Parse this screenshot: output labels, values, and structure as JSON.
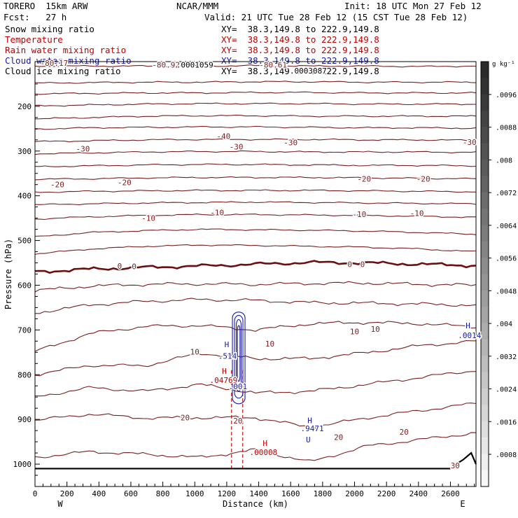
{
  "header": {
    "model": "TORERO  15km ARW",
    "fcst": "Fcst:   27 h",
    "center": "NCAR/MMM",
    "init": "Init: 18 UTC Mon 27 Feb 12",
    "valid": "Valid: 21 UTC Tue 28 Feb 12 (15 CST Tue 28 Feb 12)"
  },
  "fields": [
    {
      "name": "Snow mixing ratio",
      "xy": "XY=  38.3,149.8 to 222.9,149.8",
      "color": "#000000"
    },
    {
      "name": "Temperature",
      "xy": "XY=  38.3,149.8 to 222.9,149.8",
      "color": "#c00000"
    },
    {
      "name": "Rain water mixing ratio",
      "xy": "XY=  38.3,149.8 to 222.9,149.8",
      "color": "#c00000"
    },
    {
      "name": "Cloud water mixing ratio",
      "xy": "XY=  38.3,149.8 to 222.9,149.8",
      "color": "#1a1aa0"
    },
    {
      "name": "Cloud ice mixing ratio",
      "xy": "XY=  38.3,149.8 to 222.9,149.8",
      "color": "#000000"
    }
  ],
  "chart_data": {
    "type": "cross-section contour",
    "xlabel": "Distance (km)",
    "ylabel": "Pressure (hPa)",
    "xlim": [
      0,
      2760
    ],
    "ylim": [
      1050,
      100
    ],
    "x_ticks": [
      0,
      200,
      400,
      600,
      800,
      1000,
      1200,
      1400,
      1600,
      1800,
      2000,
      2200,
      2400,
      2600
    ],
    "y_ticks": [
      200,
      300,
      400,
      500,
      600,
      700,
      800,
      900,
      1000
    ],
    "end_labels": {
      "left": "W",
      "right": "E"
    },
    "colorbar": {
      "unit": "g kg⁻¹",
      "labels": [
        ".0096",
        ".0088",
        ".008",
        ".0072",
        ".0064",
        ".0056",
        ".0048",
        ".004",
        ".0032",
        ".0024",
        ".0016",
        ".0008"
      ],
      "dark_color": "#2a2a2a",
      "light_color": "#f7f7f7"
    },
    "temperature_contours": {
      "color": "#7a1f1f",
      "zero_color": "#6e0f0f",
      "isotherms": [
        {
          "p": [
            110,
            110,
            110,
            110,
            109,
            110,
            110,
            111,
            110
          ],
          "label": null
        },
        {
          "p": [
            148,
            147,
            146,
            146,
            145,
            145,
            146,
            146,
            146
          ],
          "label": null
        },
        {
          "p": [
            172,
            171,
            170,
            170,
            169,
            169,
            170,
            170,
            170
          ],
          "label": null
        },
        {
          "p": [
            199,
            197,
            195,
            194,
            194,
            194,
            195,
            195,
            195
          ],
          "label": null
        },
        {
          "p": [
            228,
            225,
            222,
            221,
            221,
            222,
            222,
            222,
            222
          ],
          "label": null
        },
        {
          "p": [
            251,
            248,
            247,
            246,
            246,
            247,
            248,
            248,
            249
          ],
          "label": null
        },
        {
          "p": [
            279,
            277,
            275,
            274,
            274,
            274,
            275,
            275,
            276
          ],
          "label": null
        },
        {
          "p": [
            306,
            304,
            302,
            301,
            301,
            302,
            302,
            302,
            303
          ],
          "label": null
        },
        {
          "p": [
            335,
            333,
            331,
            330,
            330,
            331,
            332,
            332,
            333
          ],
          "label": null
        },
        {
          "p": [
            363,
            362,
            360,
            359,
            359,
            359,
            360,
            361,
            362
          ],
          "label": null
        },
        {
          "p": [
            392,
            390,
            389,
            388,
            388,
            388,
            389,
            390,
            391
          ],
          "label": null
        },
        {
          "p": [
            420,
            418,
            416,
            415,
            414,
            415,
            416,
            417,
            418
          ],
          "label": null
        },
        {
          "p": [
            452,
            447,
            444,
            442,
            442,
            443,
            444,
            446,
            448
          ],
          "label": null
        },
        {
          "p": [
            492,
            482,
            478,
            475,
            476,
            477,
            479,
            482,
            486
          ],
          "label": null
        },
        {
          "p": [
            530,
            519,
            513,
            510,
            511,
            513,
            515,
            519,
            525
          ],
          "label": null
        },
        {
          "p": [
            570,
            564,
            560,
            557,
            553,
            549,
            550,
            553,
            556
          ],
          "label": null
        },
        {
          "p": [
            612,
            602,
            598,
            597,
            598,
            596,
            595,
            598,
            600
          ],
          "label": null
        },
        {
          "p": [
            662,
            644,
            636,
            632,
            634,
            639,
            640,
            642,
            645
          ],
          "label": null
        },
        {
          "p": [
            748,
            708,
            692,
            690,
            700,
            686,
            683,
            686,
            693
          ],
          "label": null
        },
        {
          "p": [
            800,
            779,
            780,
            752,
            764,
            764,
            751,
            735,
            725
          ],
          "label": null
        },
        {
          "p": [
            850,
            829,
            837,
            822,
            841,
            837,
            822,
            806,
            790
          ],
          "label": null
        },
        {
          "p": [
            902,
            888,
            897,
            896,
            896,
            918,
            897,
            880,
            864
          ],
          "label": null
        },
        {
          "p": [
            985,
            972,
            978,
            985,
            968,
            995,
            960,
            945,
            930
          ],
          "label": null
        }
      ],
      "labels": [
        {
          "text": "-40",
          "x": 1180,
          "p": 267
        },
        {
          "text": "-30",
          "x": 300,
          "p": 295
        },
        {
          "text": "-30",
          "x": 1260,
          "p": 290
        },
        {
          "text": "-30",
          "x": 1600,
          "p": 281
        },
        {
          "text": "-30",
          "x": 2720,
          "p": 280
        },
        {
          "text": "-20",
          "x": 140,
          "p": 375
        },
        {
          "text": "-20",
          "x": 560,
          "p": 370
        },
        {
          "text": "-20",
          "x": 2060,
          "p": 362
        },
        {
          "text": "-20",
          "x": 2430,
          "p": 362
        },
        {
          "text": "-10",
          "x": 710,
          "p": 450
        },
        {
          "text": "-10",
          "x": 1140,
          "p": 437
        },
        {
          "text": "-10",
          "x": 2030,
          "p": 441
        },
        {
          "text": "-10",
          "x": 2390,
          "p": 439
        },
        {
          "text": "0",
          "x": 530,
          "p": 557
        },
        {
          "text": "0",
          "x": 620,
          "p": 558
        },
        {
          "text": "0",
          "x": 1970,
          "p": 553
        },
        {
          "text": "0",
          "x": 2050,
          "p": 553
        },
        {
          "text": "10",
          "x": 1000,
          "p": 749
        },
        {
          "text": "10",
          "x": 2000,
          "p": 703
        },
        {
          "text": "10",
          "x": 2130,
          "p": 698
        },
        {
          "text": "10",
          "x": 1470,
          "p": 731
        },
        {
          "text": "20",
          "x": 940,
          "p": 896
        },
        {
          "text": "20",
          "x": 1270,
          "p": 903
        },
        {
          "text": "20",
          "x": 1900,
          "p": 940
        },
        {
          "text": "20",
          "x": 2310,
          "p": 928
        },
        {
          "text": "30",
          "x": 2630,
          "p": 1003
        }
      ]
    },
    "extra_labels": [
      {
        "text": "-80.17",
        "x": 120,
        "p": 103,
        "color": "#7a1f1f"
      },
      {
        "text": "-80.92",
        "x": 820,
        "p": 107,
        "color": "#7a1f1f"
      },
      {
        "text": ".0001059",
        "x": 1000,
        "p": 107,
        "color": "#000000"
      },
      {
        "text": "-80.61",
        "x": 1490,
        "p": 107,
        "color": "#7a1f1f"
      },
      {
        "text": ".0003087",
        "x": 1710,
        "p": 120,
        "color": "#000000"
      }
    ],
    "cloud_water": {
      "color": "#1a1aa0",
      "x_center": 1275,
      "p_top": 660,
      "p_bottom": 865
    },
    "rain_shaft": {
      "color": "#c00000",
      "x": [
        1230,
        1300
      ],
      "p_top": 790,
      "p_bottom": 1010
    },
    "extrema": [
      {
        "text": "H",
        "x": 1200,
        "p": 732,
        "color": "#1a1aa0"
      },
      {
        "text": ".514",
        "x": 1205,
        "p": 758,
        "color": "#1a1aa0"
      },
      {
        "text": "H",
        "x": 1185,
        "p": 792,
        "color": "#c00000"
      },
      {
        "text": ".04769",
        "x": 1180,
        "p": 812,
        "color": "#c00000"
      },
      {
        "text": ".001",
        "x": 1270,
        "p": 826,
        "color": "#1a1aa0"
      },
      {
        "text": "H",
        "x": 1440,
        "p": 953,
        "color": "#c00000"
      },
      {
        "text": ".00008",
        "x": 1430,
        "p": 973,
        "color": "#c00000"
      },
      {
        "text": "H",
        "x": 1720,
        "p": 902,
        "color": "#1a1aa0"
      },
      {
        "text": ".9471",
        "x": 1735,
        "p": 920,
        "color": "#1a1aa0"
      },
      {
        "text": "U",
        "x": 1710,
        "p": 945,
        "color": "#1a1aa0"
      },
      {
        "text": "H",
        "x": 2710,
        "p": 690,
        "color": "#1a1aa0"
      },
      {
        "text": ".0014",
        "x": 2720,
        "p": 712,
        "color": "#1a1aa0"
      }
    ],
    "surface": {
      "p": 1010,
      "ridge_x": [
        2600,
        2680,
        2730,
        2760
      ],
      "ridge_p": [
        1008,
        990,
        975,
        1000
      ]
    }
  }
}
